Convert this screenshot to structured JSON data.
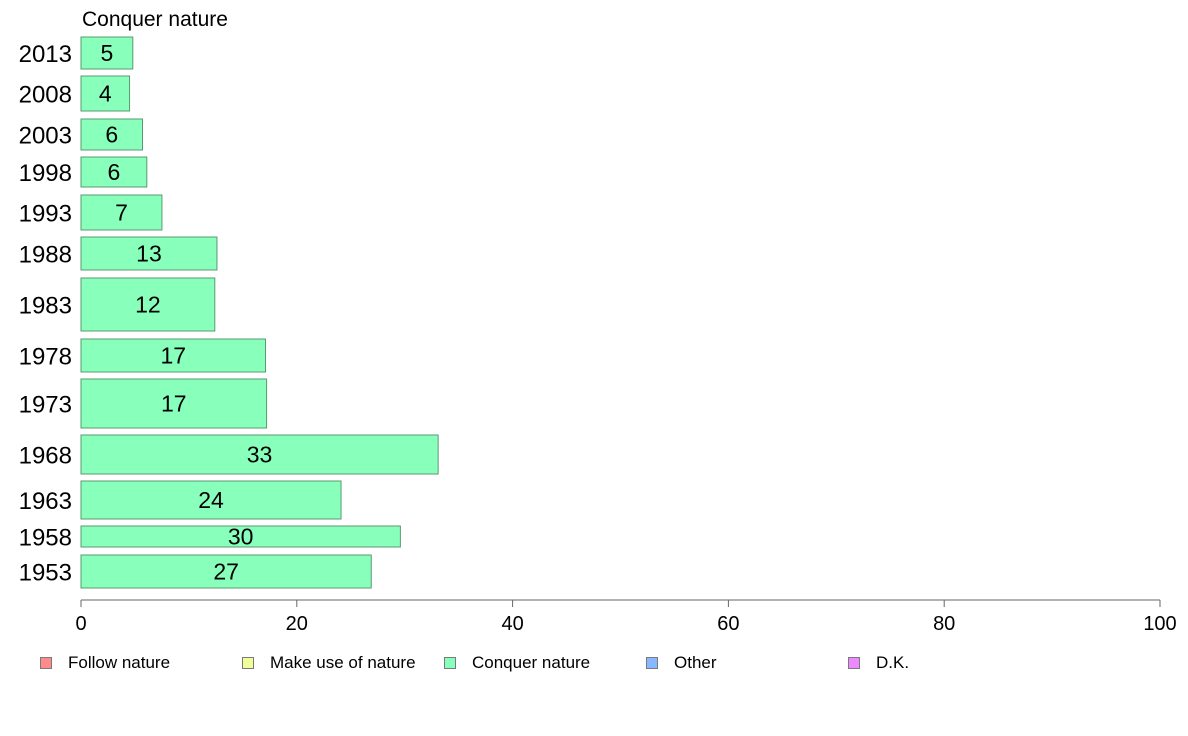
{
  "chart_data": {
    "type": "bar",
    "orientation": "horizontal",
    "title": "Conquer nature",
    "categories": [
      "2013",
      "2008",
      "2003",
      "1998",
      "1993",
      "1988",
      "1983",
      "1978",
      "1973",
      "1968",
      "1963",
      "1958",
      "1953"
    ],
    "series": [
      {
        "name": "Conquer nature",
        "color": "#88ffbb",
        "values": [
          5,
          4,
          6,
          6,
          7,
          13,
          12,
          17,
          17,
          33,
          24,
          30,
          27
        ],
        "plotted_values": [
          4.8,
          4.5,
          5.7,
          6.1,
          7.5,
          12.6,
          12.4,
          17.1,
          17.2,
          33.1,
          24.1,
          29.6,
          26.9
        ]
      }
    ],
    "xlim": [
      0,
      100
    ],
    "xticks": [
      0,
      20,
      40,
      60,
      80,
      100
    ],
    "grid": false,
    "legend": {
      "position": "bottom",
      "entries": [
        {
          "name": "Follow nature",
          "color": "#ff8a8a"
        },
        {
          "name": "Make use of nature",
          "color": "#f0ff99"
        },
        {
          "name": "Conquer nature",
          "color": "#88ffbb"
        },
        {
          "name": "Other",
          "color": "#88b8ff"
        },
        {
          "name": "D.K.",
          "color": "#ee88ff"
        }
      ]
    }
  }
}
